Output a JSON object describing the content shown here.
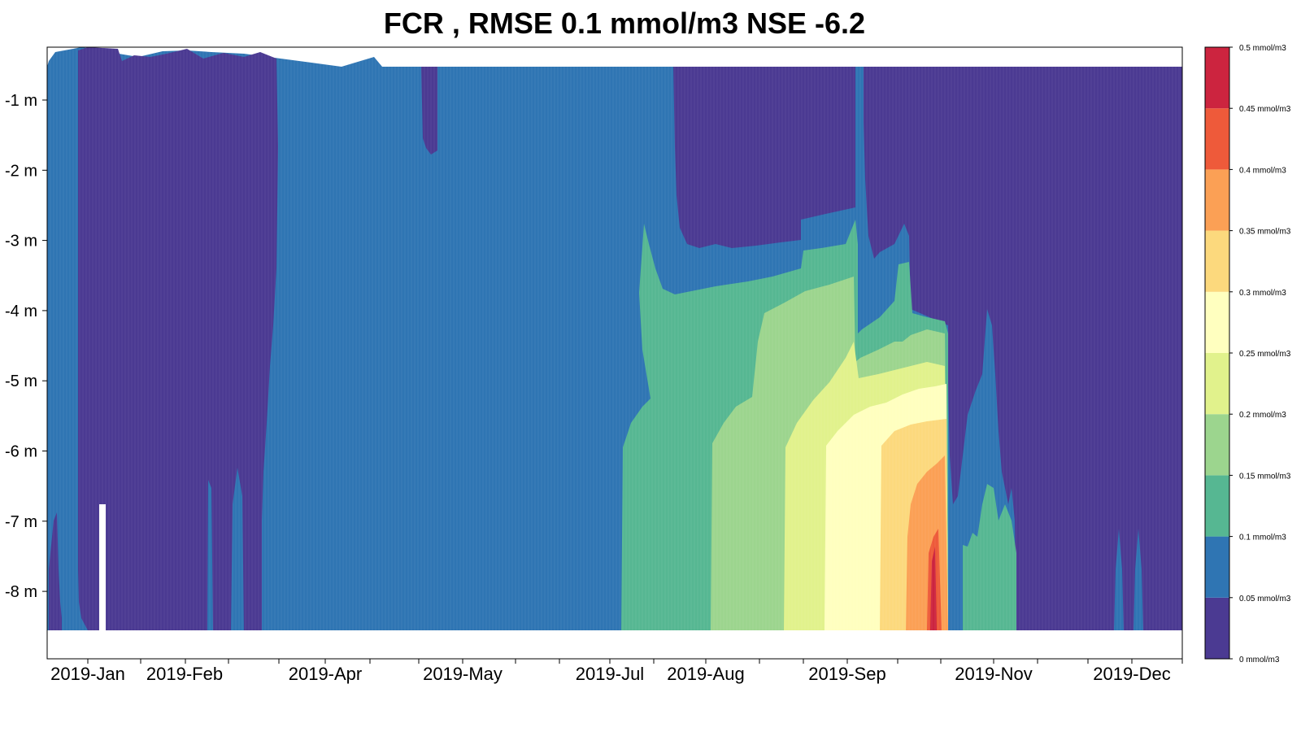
{
  "title": "FCR , RMSE 0.1 mmol/m3 NSE -6.2",
  "chart_data": {
    "type": "heatmap",
    "title": "FCR , RMSE 0.1 mmol/m3 NSE -6.2",
    "xlabel": "",
    "ylabel": "",
    "y_ticks": [
      "-1 m",
      "-2 m",
      "-3 m",
      "-4 m",
      "-5 m",
      "-6 m",
      "-7 m",
      "-8 m"
    ],
    "y_tick_values": [
      -1,
      -2,
      -3,
      -4,
      -5,
      -6,
      -7,
      -8
    ],
    "ylim": [
      -8.9,
      -0.25
    ],
    "x_ticks": [
      "2019-Jan",
      "2019-Feb",
      "2019-Apr",
      "2019-May",
      "2019-Jul",
      "2019-Aug",
      "2019-Sep",
      "2019-Nov",
      "2019-Dec"
    ],
    "colorbar": {
      "levels": [
        0,
        0.05,
        0.1,
        0.15,
        0.2,
        0.25,
        0.3,
        0.35,
        0.4,
        0.45,
        0.5
      ],
      "labels": [
        "0 mmol/m3",
        "0.05 mmol/m3",
        "0.1 mmol/m3",
        "0.15 mmol/m3",
        "0.2 mmol/m3",
        "0.25 mmol/m3",
        "0.3 mmol/m3",
        "0.35 mmol/m3",
        "0.4 mmol/m3",
        "0.45 mmol/m3",
        "0.5 mmol/m3"
      ],
      "colors": [
        "#4b3a92",
        "#2f75b3",
        "#56b792",
        "#9cd58e",
        "#e1f28c",
        "#ffffbf",
        "#fcd97d",
        "#fba055",
        "#ee5a3a",
        "#cc243f"
      ]
    }
  }
}
